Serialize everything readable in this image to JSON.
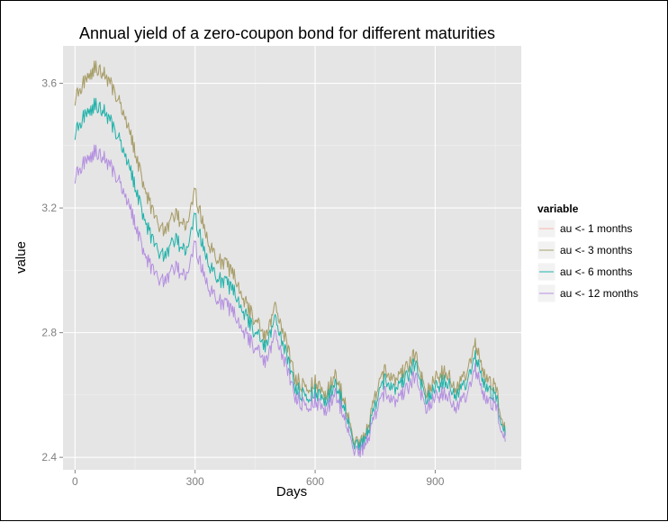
{
  "chart_data": {
    "type": "line",
    "title": "Annual yield of a zero-coupon bond for different maturities",
    "xlabel": "Days",
    "ylabel": "value",
    "xlim": [
      -30,
      1115
    ],
    "ylim": [
      2.36,
      3.72
    ],
    "x_ticks": [
      0,
      300,
      600,
      900
    ],
    "x_tick_labels": [
      "0",
      "300",
      "600",
      "900"
    ],
    "y_ticks": [
      2.4,
      2.8,
      3.2,
      3.6
    ],
    "y_tick_labels": [
      "2.4",
      "2.8",
      "3.2",
      "3.6"
    ],
    "grid": true,
    "panel_background": "#e5e5e5",
    "legend": {
      "title": "variable",
      "position": "right"
    },
    "x": [
      0,
      25,
      50,
      75,
      100,
      125,
      150,
      175,
      200,
      225,
      250,
      275,
      300,
      325,
      350,
      375,
      400,
      425,
      450,
      475,
      500,
      525,
      550,
      575,
      600,
      625,
      650,
      675,
      700,
      725,
      750,
      775,
      800,
      825,
      850,
      875,
      900,
      925,
      950,
      975,
      1000,
      1025,
      1050,
      1075
    ],
    "series": [
      {
        "name": "au <-  1 months",
        "color": "#f5b5ac",
        "values": [
          3.55,
          3.61,
          3.65,
          3.63,
          3.57,
          3.5,
          3.38,
          3.26,
          3.16,
          3.12,
          3.18,
          3.14,
          3.25,
          3.12,
          3.04,
          3.02,
          2.98,
          2.9,
          2.84,
          2.79,
          2.88,
          2.78,
          2.66,
          2.62,
          2.64,
          2.6,
          2.66,
          2.58,
          2.44,
          2.46,
          2.6,
          2.68,
          2.65,
          2.68,
          2.73,
          2.61,
          2.65,
          2.68,
          2.62,
          2.66,
          2.76,
          2.66,
          2.63,
          2.48
        ]
      },
      {
        "name": "au <-  3 months",
        "color": "#a3a06a",
        "values": [
          3.55,
          3.61,
          3.65,
          3.63,
          3.57,
          3.5,
          3.38,
          3.26,
          3.16,
          3.12,
          3.18,
          3.14,
          3.25,
          3.12,
          3.04,
          3.02,
          2.98,
          2.9,
          2.84,
          2.79,
          2.88,
          2.78,
          2.66,
          2.62,
          2.64,
          2.6,
          2.66,
          2.58,
          2.44,
          2.46,
          2.6,
          2.68,
          2.65,
          2.68,
          2.73,
          2.61,
          2.65,
          2.68,
          2.62,
          2.66,
          2.76,
          2.66,
          2.63,
          2.48
        ]
      },
      {
        "name": "au <-  6 months",
        "color": "#20b2aa",
        "values": [
          3.44,
          3.5,
          3.53,
          3.51,
          3.45,
          3.38,
          3.27,
          3.16,
          3.07,
          3.04,
          3.1,
          3.06,
          3.17,
          3.05,
          2.98,
          2.96,
          2.93,
          2.86,
          2.8,
          2.76,
          2.84,
          2.74,
          2.63,
          2.59,
          2.61,
          2.58,
          2.63,
          2.56,
          2.43,
          2.45,
          2.57,
          2.65,
          2.62,
          2.65,
          2.7,
          2.59,
          2.62,
          2.65,
          2.6,
          2.63,
          2.72,
          2.63,
          2.6,
          2.47
        ]
      },
      {
        "name": "au <-  12 months",
        "color": "#b48fe0",
        "values": [
          3.3,
          3.35,
          3.38,
          3.36,
          3.31,
          3.25,
          3.15,
          3.05,
          2.98,
          2.96,
          3.01,
          2.98,
          3.08,
          2.97,
          2.91,
          2.89,
          2.86,
          2.8,
          2.75,
          2.71,
          2.79,
          2.7,
          2.6,
          2.56,
          2.58,
          2.55,
          2.6,
          2.53,
          2.41,
          2.43,
          2.54,
          2.61,
          2.58,
          2.61,
          2.66,
          2.56,
          2.59,
          2.61,
          2.56,
          2.59,
          2.68,
          2.59,
          2.57,
          2.45
        ]
      }
    ]
  }
}
